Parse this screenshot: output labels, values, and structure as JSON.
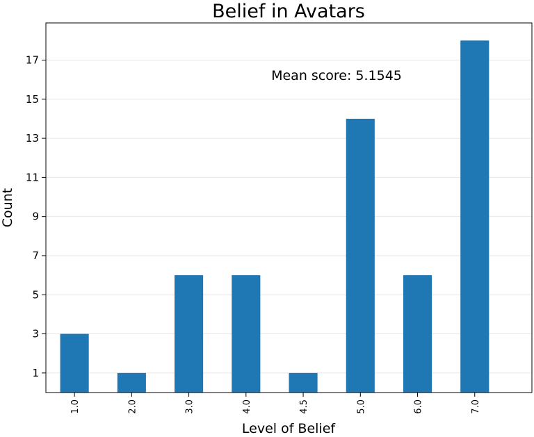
{
  "chart_data": {
    "type": "bar",
    "title": "Belief in Avatars",
    "xlabel": "Level of Belief",
    "ylabel": "Count",
    "categories": [
      "1.0",
      "2.0",
      "3.0",
      "4.0",
      "4.5",
      "5.0",
      "6.0",
      "7.0"
    ],
    "values": [
      3,
      1,
      6,
      6,
      1,
      14,
      6,
      18
    ],
    "ylim": [
      0,
      18.9
    ],
    "yticks": [
      1,
      3,
      5,
      7,
      9,
      11,
      13,
      15,
      17
    ],
    "grid": "y",
    "bar_color": "#1f77b4",
    "annotation": "Mean score: 5.1545"
  }
}
